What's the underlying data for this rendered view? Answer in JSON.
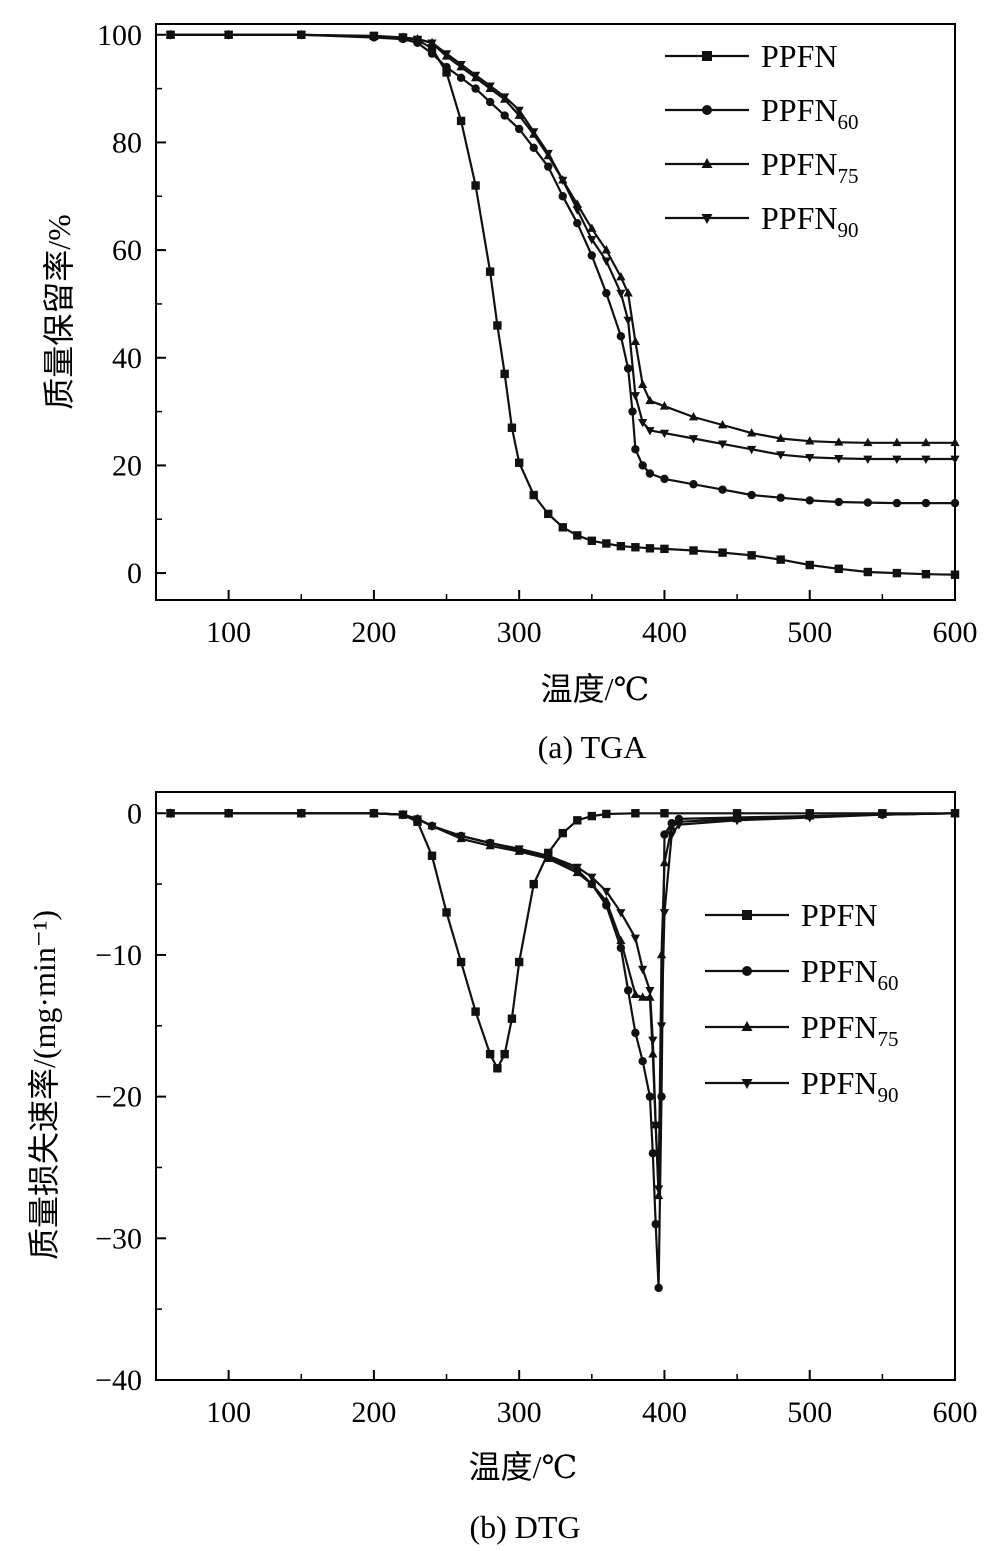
{
  "figure": {
    "caption_a": "(a) TGA",
    "caption_b": "(b) DTG"
  },
  "colors": {
    "line": "#111111",
    "axis": "#000000",
    "background": "#ffffff"
  },
  "chart_data": [
    {
      "id": "tga",
      "type": "line",
      "title": "(a) TGA",
      "xlabel": "温度/℃",
      "ylabel": "质量保留率/%",
      "xlim": [
        50,
        600
      ],
      "ylim": [
        -5,
        102
      ],
      "xticks": [
        100,
        200,
        300,
        400,
        500,
        600
      ],
      "yticks": [
        0,
        20,
        40,
        60,
        80,
        100
      ],
      "legend_position": "top-right",
      "series": [
        {
          "name": "PPFN",
          "marker": "square",
          "sub": "",
          "x": [
            60,
            100,
            150,
            200,
            220,
            230,
            240,
            250,
            260,
            270,
            280,
            285,
            290,
            295,
            300,
            310,
            320,
            330,
            340,
            350,
            360,
            370,
            380,
            390,
            400,
            420,
            440,
            460,
            480,
            500,
            520,
            540,
            560,
            580,
            600
          ],
          "y": [
            100,
            100,
            100,
            99.8,
            99.5,
            99,
            97.5,
            93,
            84,
            72,
            56,
            46,
            37,
            27,
            20.5,
            14.5,
            11,
            8.5,
            7,
            6,
            5.5,
            5,
            4.8,
            4.6,
            4.5,
            4.2,
            3.8,
            3.3,
            2.5,
            1.5,
            0.8,
            0.2,
            0,
            -0.2,
            -0.3
          ]
        },
        {
          "name": "PPFN",
          "marker": "circle",
          "sub": "60",
          "x": [
            60,
            100,
            150,
            200,
            220,
            230,
            240,
            250,
            260,
            270,
            280,
            290,
            300,
            310,
            320,
            330,
            340,
            350,
            360,
            370,
            375,
            378,
            380,
            385,
            390,
            400,
            420,
            440,
            460,
            480,
            500,
            520,
            540,
            560,
            580,
            600
          ],
          "y": [
            100,
            100,
            100,
            99.5,
            99.2,
            98.5,
            96.5,
            94,
            92,
            90,
            87.5,
            85,
            82.5,
            79,
            75.5,
            70,
            65,
            59,
            52,
            44,
            38,
            30,
            23,
            20,
            18.5,
            17.5,
            16.5,
            15.5,
            14.5,
            14,
            13.5,
            13.2,
            13.1,
            13,
            13,
            13
          ]
        },
        {
          "name": "PPFN",
          "marker": "triangle-up",
          "sub": "75",
          "x": [
            60,
            100,
            150,
            200,
            220,
            230,
            240,
            250,
            260,
            270,
            280,
            290,
            300,
            310,
            320,
            330,
            340,
            350,
            360,
            370,
            375,
            380,
            385,
            390,
            400,
            420,
            440,
            460,
            480,
            500,
            520,
            540,
            560,
            580,
            600
          ],
          "y": [
            100,
            100,
            100,
            99.7,
            99.5,
            99.2,
            98.5,
            96,
            94,
            92,
            90,
            88,
            85,
            81.5,
            77.5,
            73,
            68.5,
            64,
            60,
            55,
            52,
            43,
            35,
            32,
            31,
            29,
            27.5,
            26,
            25,
            24.5,
            24.3,
            24.2,
            24.2,
            24.2,
            24.2
          ]
        },
        {
          "name": "PPFN",
          "marker": "triangle-down",
          "sub": "90",
          "x": [
            60,
            100,
            150,
            200,
            220,
            230,
            240,
            250,
            260,
            270,
            280,
            290,
            300,
            310,
            320,
            330,
            340,
            350,
            360,
            370,
            375,
            380,
            385,
            390,
            400,
            420,
            440,
            460,
            480,
            500,
            520,
            540,
            560,
            580,
            600
          ],
          "y": [
            100,
            100,
            100,
            99.7,
            99.5,
            99.2,
            98.5,
            96.5,
            94.5,
            92.5,
            90.5,
            88.5,
            86,
            82,
            78,
            73,
            67.5,
            62,
            58,
            52,
            47,
            33,
            28,
            26.5,
            26,
            25,
            24,
            23,
            22,
            21.5,
            21.3,
            21.2,
            21.2,
            21.2,
            21.2
          ]
        }
      ]
    },
    {
      "id": "dtg",
      "type": "line",
      "title": "(b) DTG",
      "xlabel": "温度/℃",
      "ylabel": "质量损失速率/(mg·min⁻¹)",
      "xlim": [
        50,
        600
      ],
      "ylim": [
        -40,
        1.5
      ],
      "xticks": [
        100,
        200,
        300,
        400,
        500,
        600
      ],
      "yticks": [
        0,
        -10,
        -20,
        -30,
        -40
      ],
      "legend_position": "right",
      "series": [
        {
          "name": "PPFN",
          "marker": "square",
          "sub": "",
          "x": [
            60,
            100,
            150,
            200,
            220,
            230,
            240,
            250,
            260,
            270,
            280,
            285,
            290,
            295,
            300,
            310,
            320,
            330,
            340,
            350,
            360,
            380,
            400,
            450,
            500,
            550,
            600
          ],
          "y": [
            0,
            0,
            0,
            0,
            -0.1,
            -0.6,
            -3,
            -7,
            -10.5,
            -14,
            -17,
            -18,
            -17,
            -14.5,
            -10.5,
            -5,
            -2.8,
            -1.4,
            -0.5,
            -0.2,
            -0.05,
            0,
            0,
            0,
            0,
            0,
            0
          ]
        },
        {
          "name": "PPFN",
          "marker": "circle",
          "sub": "60",
          "x": [
            60,
            100,
            150,
            200,
            220,
            230,
            240,
            260,
            280,
            300,
            320,
            340,
            350,
            360,
            370,
            375,
            380,
            385,
            390,
            392,
            394,
            396,
            398,
            400,
            405,
            410,
            450,
            500,
            550,
            600
          ],
          "y": [
            0,
            0,
            0,
            0,
            -0.1,
            -0.4,
            -0.9,
            -1.6,
            -2.1,
            -2.6,
            -3.1,
            -4,
            -5,
            -6.5,
            -9.5,
            -12.5,
            -15.5,
            -17.5,
            -20,
            -24,
            -29,
            -33.5,
            -20,
            -1.5,
            -0.7,
            -0.4,
            -0.3,
            -0.2,
            -0.1,
            0
          ]
        },
        {
          "name": "PPFN",
          "marker": "triangle-up",
          "sub": "75",
          "x": [
            60,
            100,
            150,
            200,
            220,
            230,
            240,
            260,
            280,
            300,
            320,
            340,
            350,
            360,
            370,
            380,
            385,
            390,
            392,
            394,
            396,
            398,
            400,
            405,
            410,
            450,
            500,
            550,
            600
          ],
          "y": [
            0,
            0,
            0,
            0,
            -0.1,
            -0.4,
            -0.9,
            -1.8,
            -2.3,
            -2.7,
            -3.2,
            -4.2,
            -5,
            -6.2,
            -9,
            -12.8,
            -13,
            -13,
            -17,
            -22,
            -27,
            -10,
            -3.5,
            -1,
            -0.6,
            -0.4,
            -0.2,
            -0.1,
            0
          ]
        },
        {
          "name": "PPFN",
          "marker": "triangle-down",
          "sub": "90",
          "x": [
            60,
            100,
            150,
            200,
            220,
            230,
            240,
            260,
            280,
            300,
            320,
            340,
            350,
            360,
            370,
            380,
            385,
            390,
            392,
            394,
            396,
            398,
            400,
            405,
            410,
            450,
            500,
            550,
            600
          ],
          "y": [
            0,
            0,
            0,
            0,
            -0.1,
            -0.4,
            -0.9,
            -1.6,
            -2.1,
            -2.5,
            -3,
            -3.8,
            -4.5,
            -5.5,
            -7,
            -8.8,
            -11,
            -12.5,
            -16,
            -22,
            -26.5,
            -15,
            -7,
            -1.5,
            -0.8,
            -0.5,
            -0.3,
            -0.1,
            0
          ]
        }
      ]
    }
  ]
}
